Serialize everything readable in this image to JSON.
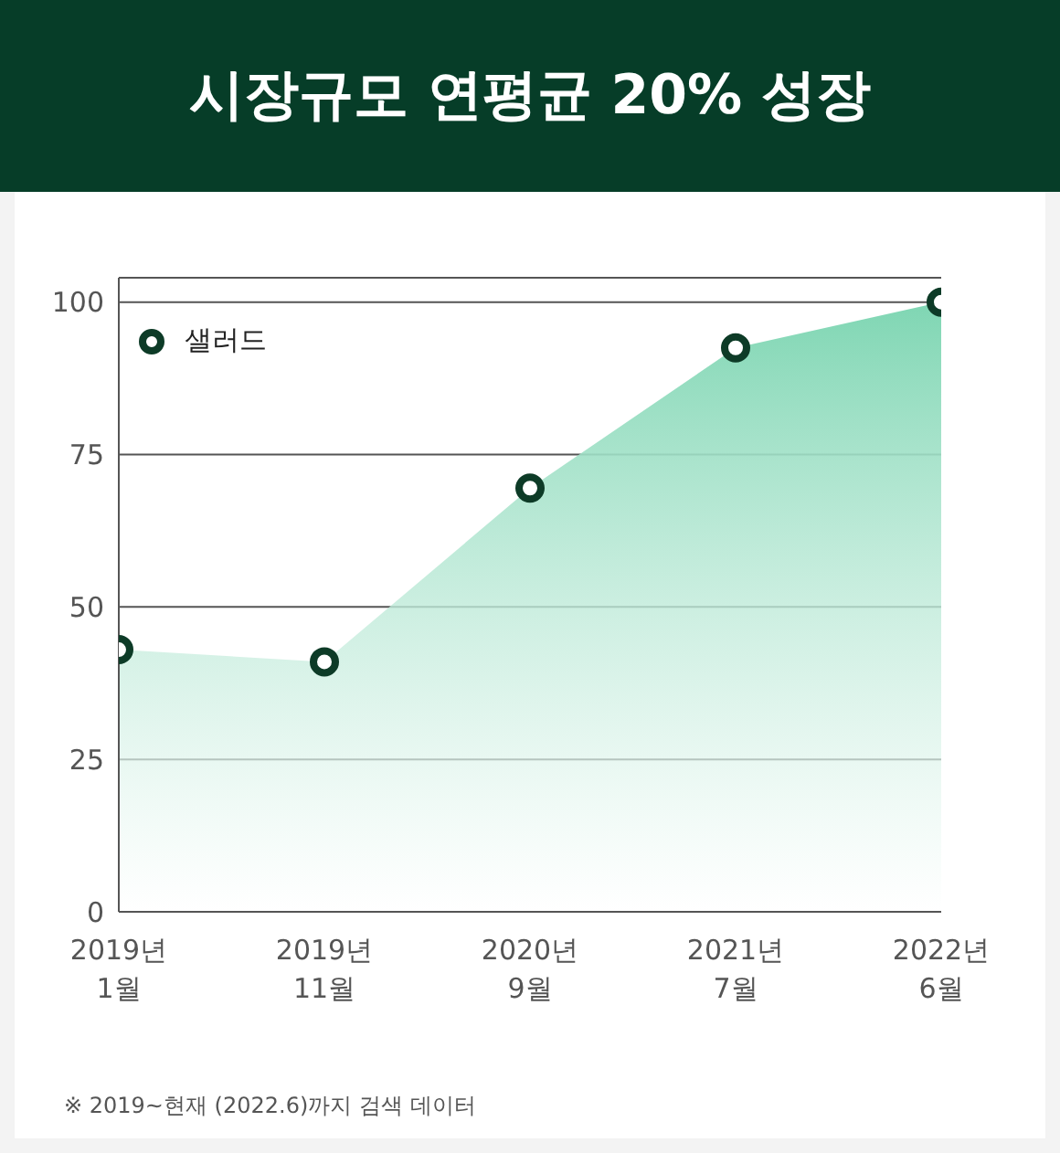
{
  "chart_data": {
    "type": "area",
    "title": "시장규모 연평균 20% 성장",
    "categories": [
      "2019년 1월",
      "2019년 11월",
      "2020년 9월",
      "2021년 7월",
      "2022년 6월"
    ],
    "series": [
      {
        "name": "샐러드",
        "color": "#0d3b27",
        "values": [
          43,
          41,
          69.5,
          92.5,
          100
        ]
      }
    ],
    "ylim": [
      0,
      104
    ],
    "yticks": [
      0,
      25,
      50,
      75,
      100
    ],
    "grid": "y",
    "legend": "top left",
    "marker": "circle",
    "annotations": [
      "※ 2019~현재 (2022.6)까지 검색 데이터"
    ]
  }
}
